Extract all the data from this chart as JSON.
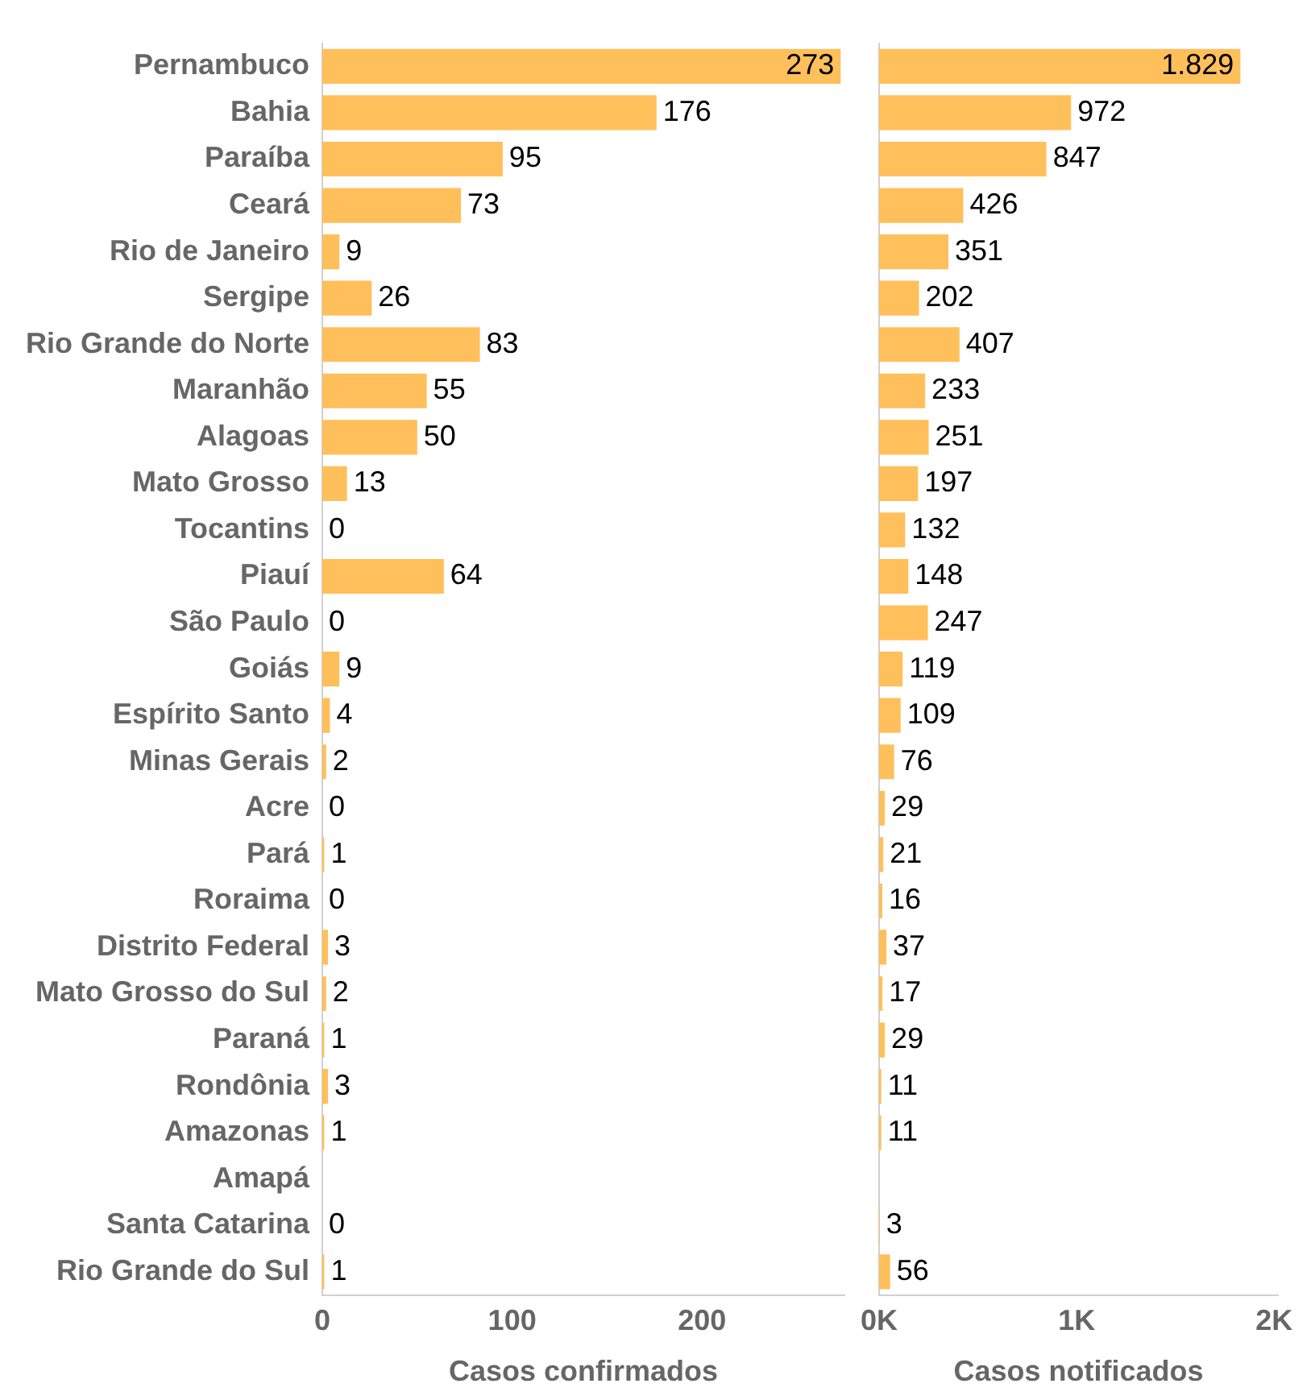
{
  "chart_data": [
    {
      "type": "bar",
      "orientation": "horizontal",
      "xlabel": "Casos confirmados",
      "categories": [
        "Pernambuco",
        "Bahia",
        "Paraíba",
        "Ceará",
        "Rio de Janeiro",
        "Sergipe",
        "Rio Grande do Norte",
        "Maranhão",
        "Alagoas",
        "Mato Grosso",
        "Tocantins",
        "Piauí",
        "São Paulo",
        "Goiás",
        "Espírito Santo",
        "Minas Gerais",
        "Acre",
        "Pará",
        "Roraima",
        "Distrito Federal",
        "Mato Grosso do Sul",
        "Paraná",
        "Rondônia",
        "Amazonas",
        "Amapá",
        "Santa Catarina",
        "Rio Grande do Sul"
      ],
      "values": [
        273,
        176,
        95,
        73,
        9,
        26,
        83,
        55,
        50,
        13,
        0,
        64,
        0,
        9,
        4,
        2,
        0,
        1,
        0,
        3,
        2,
        1,
        3,
        1,
        null,
        0,
        1
      ],
      "color": "#ffbf5a",
      "data_labels": true,
      "xlim": [
        0,
        275
      ],
      "xticks": [
        0,
        100,
        200
      ]
    },
    {
      "type": "bar",
      "orientation": "horizontal",
      "xlabel": "Casos notificados",
      "values": [
        1829,
        972,
        847,
        426,
        351,
        202,
        407,
        233,
        251,
        197,
        132,
        148,
        247,
        119,
        109,
        76,
        29,
        21,
        16,
        37,
        17,
        29,
        11,
        11,
        null,
        3,
        56
      ],
      "value_labels": [
        "1.829",
        "972",
        "847",
        "426",
        "351",
        "202",
        "407",
        "233",
        "251",
        "197",
        "132",
        "148",
        "247",
        "119",
        "109",
        "76",
        "29",
        "21",
        "16",
        "37",
        "17",
        "29",
        "11",
        "11",
        null,
        "3",
        "56"
      ],
      "color": "#ffbf5a",
      "tick_labels": "x",
      "xlim": [
        0,
        2020
      ],
      "xticks": [
        {
          "value": 0,
          "label": "0K"
        },
        {
          "value": 1000,
          "label": "1K"
        },
        {
          "value": 2000,
          "label": "2K"
        }
      ]
    }
  ]
}
